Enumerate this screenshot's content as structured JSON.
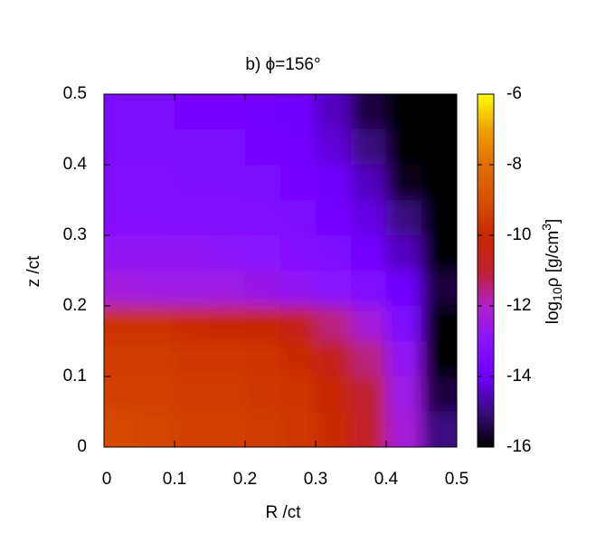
{
  "chart_data": {
    "type": "heatmap",
    "title": "b) ϕ=156°",
    "x_label": "R /ct",
    "y_label": "z /ct",
    "colorbar_label": [
      "log",
      "10",
      "ρ [g/cm",
      "3",
      "]"
    ],
    "xlim": [
      0,
      0.5
    ],
    "ylim": [
      0,
      0.5
    ],
    "xticks": [
      0,
      0.1,
      0.2,
      0.3,
      0.4,
      0.5
    ],
    "yticks": [
      0,
      0.1,
      0.2,
      0.3,
      0.4,
      0.5
    ],
    "clim": [
      -16,
      -6
    ],
    "cticks": [
      -6,
      -8,
      -10,
      -12,
      -14,
      -16
    ],
    "colorscale": [
      [
        -16,
        "#000000"
      ],
      [
        -15,
        "#3a0a80"
      ],
      [
        -14,
        "#7000ff"
      ],
      [
        -13,
        "#8a14ff"
      ],
      [
        -12,
        "#b020c8"
      ],
      [
        -11,
        "#c02030"
      ],
      [
        -10,
        "#c82800"
      ],
      [
        -9,
        "#d85000"
      ],
      [
        -8,
        "#e07000"
      ],
      [
        -7,
        "#f0a000"
      ],
      [
        -6,
        "#ffff00"
      ]
    ],
    "x": [
      0.025,
      0.075,
      0.125,
      0.175,
      0.225,
      0.275,
      0.325,
      0.375,
      0.425,
      0.475
    ],
    "y": [
      0.475,
      0.425,
      0.375,
      0.325,
      0.275,
      0.225,
      0.175,
      0.125,
      0.075,
      0.025
    ],
    "z": [
      [
        -13.6,
        -13.6,
        -13.7,
        -13.7,
        -13.8,
        -14,
        -14.5,
        -15.5,
        -16,
        -16
      ],
      [
        -13.5,
        -13.5,
        -13.6,
        -13.6,
        -13.7,
        -13.9,
        -14.3,
        -15,
        -16,
        -16
      ],
      [
        -13.4,
        -13.4,
        -13.5,
        -13.5,
        -13.6,
        -13.7,
        -14,
        -14.5,
        -15.8,
        -16
      ],
      [
        -13.2,
        -13.2,
        -13.3,
        -13.3,
        -13.4,
        -13.5,
        -13.8,
        -14.2,
        -15,
        -16
      ],
      [
        -12.8,
        -12.8,
        -12.8,
        -12.9,
        -13,
        -13.2,
        -13.5,
        -13.9,
        -14.5,
        -16
      ],
      [
        -12.4,
        -12.5,
        -12.5,
        -12.5,
        -12.6,
        -12.8,
        -13,
        -13.4,
        -14,
        -15.5
      ],
      [
        -9.8,
        -9.8,
        -9.9,
        -10,
        -10.1,
        -10.5,
        -11.5,
        -12.3,
        -13.5,
        -16
      ],
      [
        -9.5,
        -9.5,
        -9.6,
        -9.6,
        -9.7,
        -9.9,
        -10.5,
        -11.5,
        -12.8,
        -16
      ],
      [
        -9.4,
        -9.4,
        -9.5,
        -9.5,
        -9.6,
        -9.7,
        -10,
        -11,
        -12.5,
        -15.5
      ],
      [
        -9.2,
        -9.3,
        -9.4,
        -9.4,
        -9.5,
        -9.6,
        -9.9,
        -10.8,
        -12.3,
        -15
      ]
    ]
  }
}
